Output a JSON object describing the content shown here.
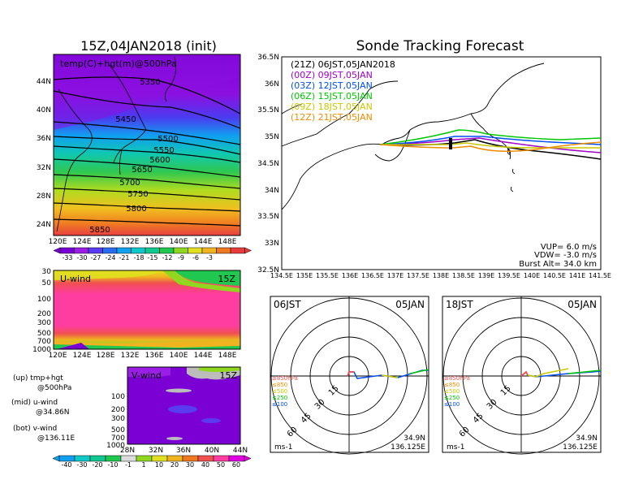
{
  "colors": {
    "scale1": [
      "#7a00d4",
      "#9a1ee6",
      "#5a3cf0",
      "#2a6cf0",
      "#10a0f0",
      "#10c8c8",
      "#10c890",
      "#20c850",
      "#90d820",
      "#e0e020",
      "#f0b420",
      "#f07820",
      "#e83c3c"
    ],
    "scale2": [
      "#10a0f0",
      "#10c8c8",
      "#10c890",
      "#20c850",
      "#dcdcdc",
      "#90d820",
      "#e0e020",
      "#f0b420",
      "#f07820",
      "#f05050",
      "#ff3ca0",
      "#e000e0"
    ],
    "track21z": "#000000",
    "track00z": "#a000c8",
    "track03z": "#0050f0",
    "track06z": "#00c800",
    "track09z": "#c8c800",
    "track12z": "#f08c00"
  },
  "left_map": {
    "title": "15Z,04JAN2018 (init)",
    "label": "temp(C)+hgt(m)@500hPa",
    "lat_labels": [
      "44N",
      "40N",
      "36N",
      "32N",
      "28N",
      "24N"
    ],
    "lon_labels": [
      "120E",
      "124E",
      "128E",
      "132E",
      "136E",
      "140E",
      "144E",
      "148E"
    ],
    "contour_labels": [
      "5350",
      "5450",
      "5500",
      "5550",
      "5600",
      "5650",
      "5700",
      "5750",
      "5800",
      "5850"
    ],
    "scale_labels": [
      "-33",
      "-30",
      "-27",
      "-24",
      "-21",
      "-18",
      "-15",
      "-12",
      "-9",
      "-6",
      "-3"
    ]
  },
  "uwind": {
    "label": "U-wind",
    "time": "15Z",
    "p_labels": [
      "30",
      "50",
      "100",
      "200",
      "300",
      "500",
      "700",
      "1000"
    ],
    "lon_labels": [
      "120E",
      "124E",
      "128E",
      "132E",
      "136E",
      "140E",
      "144E",
      "148E"
    ]
  },
  "vwind": {
    "label": "V-wind",
    "time": "15Z",
    "p_labels": [
      "100",
      "200",
      "300",
      "500",
      "700",
      "1000"
    ],
    "lat_labels": [
      "28N",
      "32N",
      "36N",
      "40N",
      "44N"
    ]
  },
  "legend": {
    "up": "(up) tmp+hgt",
    "up2": "@500hPa",
    "mid": "(mid) u-wind",
    "mid2": "@34.86N",
    "bot": "(bot) v-wind",
    "bot2": "@136.11E"
  },
  "bottom_scale_labels": [
    "-40",
    "-30",
    "-20",
    "-10",
    "-1",
    "1",
    "10",
    "20",
    "30",
    "40",
    "50",
    "60"
  ],
  "tracking": {
    "title": "Sonde Tracking Forecast",
    "lat_labels": [
      "36.5N",
      "36N",
      "35.5N",
      "35N",
      "34.5N",
      "34N",
      "33.5N",
      "33N",
      "32.5N"
    ],
    "lon_labels": [
      "134.5E",
      "135E",
      "135.5E",
      "136E",
      "136.5E",
      "137E",
      "137.5E",
      "138E",
      "138.5E",
      "139E",
      "139.5E",
      "140E",
      "140.5E",
      "141E",
      "141.5E"
    ],
    "legend": [
      "(21Z)  06JST,05JAN2018",
      "(00Z)  09JST,05JAN",
      "(03Z)  12JST,05JAN",
      "(06Z)  15JST,05JAN",
      "(09Z)  18JST,05JAN",
      "(12Z)  21JST,05JAN"
    ],
    "vup": "VUP=  6.0  m/s",
    "vdw": "VDW=  -3.0  m/s",
    "burst": "Burst  Alt=  34.0  km"
  },
  "polar1": {
    "time": "06JST",
    "date": "05JAN",
    "rings": [
      "15",
      "30",
      "45",
      "60"
    ],
    "levels": [
      "≥850hPa",
      "≤850",
      "≤500",
      "≤250",
      "≤100"
    ],
    "units": "ms-1",
    "lat": "34.9N",
    "lon": "136.125E"
  },
  "polar2": {
    "time": "18JST",
    "date": "05JAN",
    "rings": [
      "15",
      "30",
      "45",
      "60"
    ],
    "levels": [
      "≥850hPa",
      "≤850",
      "≤500",
      "≤250",
      "≤100"
    ],
    "units": "ms-1",
    "lat": "34.9N",
    "lon": "136.125E"
  }
}
